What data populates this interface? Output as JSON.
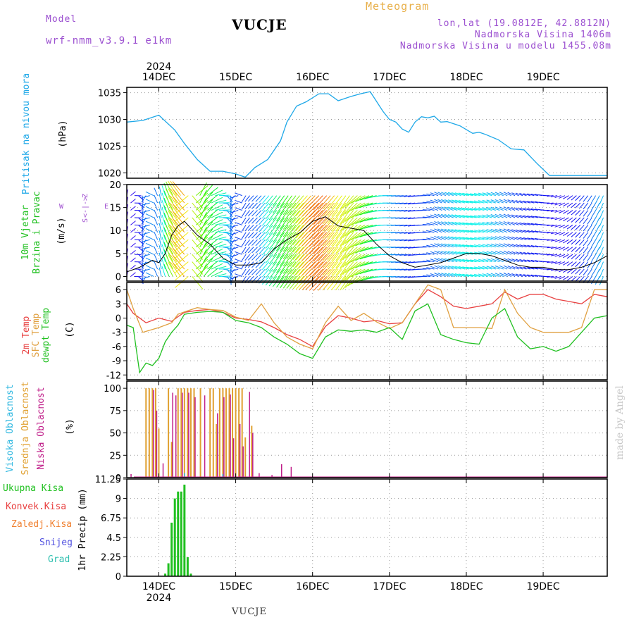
{
  "header": {
    "model_label": "Model",
    "model_name": "wrf-nmm_v3.9.1 e1km",
    "station": "VUCJE",
    "subtitle": "Meteogram",
    "coords": "lon,lat (19.0812E, 42.8812N)",
    "elevation": "Nadmorska Visina 1406m",
    "model_elevation": "Nadmorska Visina u modelu 1455.08m"
  },
  "footer": {
    "station": "VUCJE"
  },
  "watermark": "made by Angel",
  "colors": {
    "pressure": "#1ea8e8",
    "temp2m": "#e84040",
    "sfc": "#e0a040",
    "dewpt": "#20c020",
    "high_cloud": "#30b8e0",
    "mid_cloud": "#e0a030",
    "low_cloud": "#c0208a",
    "precip_total": "#20c020",
    "precip_conv": "#e84040",
    "precip_frz": "#f08030",
    "snow": "#5050e0",
    "hail": "#30c0b0",
    "wind_legend": "#a050d0"
  },
  "chart_data": {
    "type": "line",
    "time_axis": {
      "day_labels": [
        "14DEC",
        "15DEC",
        "16DEC",
        "17DEC",
        "18DEC",
        "19DEC"
      ],
      "year_label": "2024",
      "start_hour": -10,
      "end_hour": 140
    },
    "panels": [
      {
        "id": "pressure",
        "ylabel_lines": [
          "Pritisak na nivou mora"
        ],
        "unit": "(hPa)",
        "ylim": [
          1019,
          1036
        ],
        "yticks": [
          "1020",
          "1025",
          "1030",
          "1035"
        ],
        "series": [
          {
            "x": [
              -10,
              -5,
              0,
              5,
              8,
              12,
              16,
              20,
              24,
              27,
              30,
              34,
              38,
              40,
              43,
              46,
              50,
              53,
              56,
              60,
              63,
              66,
              70,
              72,
              74,
              76,
              78,
              80,
              82,
              84,
              86,
              88,
              90,
              94,
              98,
              100,
              102,
              106,
              110,
              114,
              118,
              122,
              126,
              128,
              131,
              134,
              136,
              138,
              140
            ],
            "values": [
              1029.5,
              1029.8,
              1030.8,
              1028,
              1025.5,
              1022.5,
              1020.3,
              1020.3,
              1019.8,
              1019.2,
              1021,
              1022.5,
              1026,
              1029.5,
              1032.5,
              1033.3,
              1034.8,
              1034.8,
              1033.5,
              1034.3,
              1034.8,
              1035.2,
              1031.5,
              1030,
              1029.5,
              1028.2,
              1027.6,
              1029.5,
              1030.5,
              1030.3,
              1030.6,
              1029.5,
              1029.6,
              1028.8,
              1027.4,
              1027.6,
              1027.2,
              1026.2,
              1024.5,
              1024.3,
              1021.8,
              1019.5,
              1019.5,
              1019.5,
              1019.5,
              1019.5,
              1019.5,
              1019.5,
              1019.5
            ]
          }
        ]
      },
      {
        "id": "wind",
        "ylabel_lines": [
          "10m Vjetar",
          "Brzina i Pravac"
        ],
        "unit": "(m/s)",
        "ylim": [
          -1,
          20
        ],
        "yticks": [
          "0",
          "5",
          "10",
          "15",
          "20"
        ],
        "compass": [
          "Z",
          "W",
          "<-|->",
          "E",
          "S"
        ],
        "speed": {
          "x": [
            -10,
            -6,
            -2,
            0,
            2,
            4,
            6,
            8,
            10,
            12,
            16,
            20,
            24,
            28,
            32,
            36,
            40,
            44,
            48,
            52,
            56,
            60,
            64,
            68,
            72,
            76,
            80,
            84,
            88,
            92,
            96,
            100,
            104,
            108,
            112,
            116,
            120,
            124,
            128,
            132,
            136,
            140
          ],
          "values": [
            1,
            2,
            3.5,
            3,
            5,
            9,
            11,
            12,
            10.5,
            9,
            7,
            4,
            2.5,
            2.5,
            3,
            6,
            8,
            9.5,
            12,
            13,
            11,
            10.5,
            10,
            7,
            4.5,
            3,
            2,
            2.5,
            3,
            4,
            5,
            5,
            4.5,
            3.5,
            2.5,
            2,
            2,
            1.5,
            1.5,
            2,
            3,
            4.5
          ]
        },
        "wind_dir": {
          "x": [
            -10,
            0,
            8,
            12,
            20,
            26,
            26.5,
            30,
            40,
            50,
            60,
            64,
            72,
            80,
            84,
            88,
            100,
            110,
            120,
            130,
            140
          ],
          "values": [
            10,
            350,
            320,
            20,
            100,
            290,
            210,
            225,
            215,
            225,
            215,
            240,
            270,
            260,
            270,
            295,
            280,
            295,
            280,
            230,
            200
          ]
        }
      },
      {
        "id": "temperature",
        "ylabel_lines": [
          "2m Temp",
          "SFC Temp",
          "dewpt Temp"
        ],
        "unit": "(C)",
        "ylim": [
          -13,
          7.5
        ],
        "yticks": [
          "-12",
          "-9",
          "-6",
          "-3",
          "0",
          "3",
          "6"
        ],
        "series": [
          {
            "name": "2m Temp",
            "x": [
              -10,
              -8,
              -4,
              0,
              4,
              6,
              8,
              12,
              16,
              20,
              24,
              28,
              32,
              36,
              40,
              44,
              48,
              52,
              56,
              60,
              64,
              68,
              72,
              76,
              80,
              84,
              88,
              92,
              96,
              100,
              104,
              108,
              112,
              116,
              120,
              124,
              128,
              132,
              136,
              140
            ],
            "values": [
              3,
              1,
              -1,
              0,
              -0.7,
              0.3,
              1.2,
              1.6,
              1.8,
              1.2,
              0,
              -0.3,
              -0.8,
              -2,
              -3.5,
              -4.5,
              -6,
              -1.8,
              0.5,
              0,
              -0.8,
              -0.5,
              -1.2,
              -1,
              3,
              6,
              4.5,
              2.5,
              2,
              2.5,
              3,
              5.5,
              4,
              5,
              5,
              4,
              3.5,
              3,
              5,
              4.5
            ]
          },
          {
            "name": "SFC Temp",
            "x": [
              -10,
              -8,
              -5,
              0,
              4,
              6,
              8,
              12,
              16,
              20,
              24,
              28,
              32,
              36,
              40,
              44,
              48,
              52,
              56,
              60,
              64,
              68,
              72,
              76,
              80,
              84,
              88,
              92,
              96,
              100,
              104,
              108,
              112,
              116,
              120,
              124,
              128,
              132,
              136,
              140
            ],
            "values": [
              6,
              2,
              -3,
              -2,
              -1,
              0.8,
              1.3,
              2.2,
              1.8,
              1.6,
              0.2,
              -0.5,
              3,
              -1,
              -4,
              -5.5,
              -6.5,
              -1,
              2.5,
              -0.5,
              1,
              -0.8,
              -2.2,
              -1,
              3,
              7,
              6,
              -2,
              -2,
              -2,
              -2.2,
              6,
              1,
              -2,
              -3,
              -3,
              -3,
              -2,
              6,
              6
            ]
          },
          {
            "name": "dewpt Temp",
            "x": [
              -10,
              -8,
              -6,
              -4,
              -2,
              0,
              2,
              4,
              6,
              8,
              12,
              16,
              20,
              24,
              28,
              32,
              36,
              40,
              44,
              48,
              52,
              56,
              60,
              64,
              68,
              72,
              76,
              80,
              84,
              88,
              92,
              96,
              100,
              104,
              108,
              112,
              116,
              120,
              124,
              128,
              132,
              136,
              140
            ],
            "values": [
              -1.5,
              -2,
              -11.5,
              -9.5,
              -10,
              -8.5,
              -5,
              -3,
              -1.5,
              0.8,
              1.2,
              1.4,
              1.2,
              -0.5,
              -1,
              -2,
              -4,
              -5.5,
              -7.5,
              -8.5,
              -4,
              -2.5,
              -2.8,
              -2.5,
              -3,
              -2,
              -4.5,
              1.5,
              3,
              -3.5,
              -4.5,
              -5.2,
              -5.5,
              0,
              2,
              -4,
              -6.5,
              -6,
              -7,
              -6,
              -3,
              0,
              0.5
            ]
          }
        ]
      },
      {
        "id": "clouds",
        "ylabel_lines": [
          "Visoka Oblacnost",
          "Srednja Oblacnost",
          "Niska Oblacnost"
        ],
        "unit": "(%)",
        "ylim": [
          0,
          108
        ],
        "yticks": [
          "0",
          "25",
          "50",
          "75",
          "100"
        ],
        "mid_x": [
          -4,
          -3,
          -2,
          -1,
          0,
          1,
          2,
          3,
          4,
          5,
          6,
          7,
          8,
          9,
          10,
          11,
          12,
          13,
          14,
          15,
          16,
          17,
          18,
          19,
          20,
          21,
          22,
          23,
          24,
          25,
          26,
          27,
          28,
          29,
          30
        ],
        "mid_values": [
          100,
          100,
          100,
          100,
          55,
          0,
          0,
          100,
          40,
          0,
          100,
          100,
          100,
          100,
          100,
          100,
          0,
          100,
          0,
          0,
          100,
          100,
          60,
          100,
          100,
          100,
          100,
          100,
          100,
          100,
          100,
          45,
          0,
          58,
          0
        ],
        "low_x": [
          -9,
          -2,
          -1,
          1,
          4,
          5,
          7,
          9,
          11,
          14,
          18,
          20,
          22,
          23,
          25,
          26,
          28,
          29,
          31,
          35,
          38,
          41
        ],
        "low_values": [
          4,
          98,
          75,
          16,
          95,
          92,
          95,
          95,
          90,
          92,
          72,
          90,
          93,
          44,
          60,
          35,
          96,
          50,
          5,
          3,
          15,
          12
        ],
        "high_x": [
          8,
          20
        ],
        "high_values": [
          5,
          4
        ]
      },
      {
        "id": "precip",
        "ylabel_lines": [
          "1hr Precip"
        ],
        "unit": "(mm)",
        "ylim": [
          0,
          11.25
        ],
        "yticks": [
          "0",
          "2.25",
          "4.5",
          "6.75",
          "9",
          "11.25"
        ],
        "legend": [
          "Ukupna Kisa",
          "Konvek.Kisa",
          "Zaledj.Kisa",
          "Snijeg",
          "Grad"
        ],
        "x": [
          2,
          3,
          4,
          5,
          6,
          7,
          8,
          9,
          10
        ],
        "values": [
          0.3,
          1.5,
          6.2,
          9,
          9.8,
          9.8,
          10.6,
          2.2,
          0.3
        ]
      }
    ]
  }
}
